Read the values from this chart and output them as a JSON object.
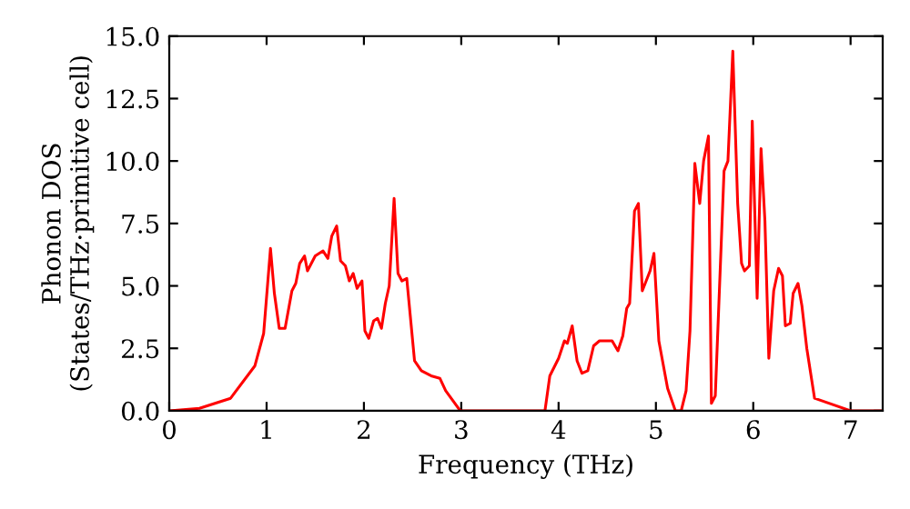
{
  "chart_data": {
    "type": "line",
    "xlabel": "Frequency (THz)",
    "ylabel": "Phonon DOS\n(States/THz·primitive cell)",
    "xlim": [
      0,
      7.33
    ],
    "ylim": [
      0,
      15
    ],
    "xticks": [
      0,
      1,
      2,
      3,
      4,
      5,
      6,
      7
    ],
    "yticks": [
      {
        "value": 0,
        "label": "0.0"
      },
      {
        "value": 2.5,
        "label": "2.5"
      },
      {
        "value": 5,
        "label": "5.0"
      },
      {
        "value": 7.5,
        "label": "7.5"
      },
      {
        "value": 10,
        "label": "10.0"
      },
      {
        "value": 12.5,
        "label": "12.5"
      },
      {
        "value": 15,
        "label": "15.0"
      }
    ],
    "grid": false,
    "legend": false,
    "marker": "none",
    "line_style": "solid",
    "series": [
      {
        "color": "#ff0000",
        "x": [
          0,
          0.31,
          0.63,
          0.88,
          0.97,
          1.04,
          1.08,
          1.13,
          1.19,
          1.26,
          1.3,
          1.34,
          1.39,
          1.42,
          1.5,
          1.58,
          1.63,
          1.67,
          1.72,
          1.76,
          1.81,
          1.85,
          1.89,
          1.93,
          1.98,
          2.01,
          2.05,
          2.1,
          2.14,
          2.18,
          2.22,
          2.26,
          2.31,
          2.35,
          2.39,
          2.44,
          2.52,
          2.59,
          2.69,
          2.78,
          2.84,
          2.99,
          3.86,
          3.91,
          4.0,
          4.06,
          4.09,
          4.14,
          4.19,
          4.24,
          4.3,
          4.36,
          4.42,
          4.55,
          4.61,
          4.66,
          4.7,
          4.73,
          4.78,
          4.82,
          4.86,
          4.94,
          4.98,
          5.03,
          5.12,
          5.2,
          5.26,
          5.31,
          5.35,
          5.4,
          5.45,
          5.49,
          5.54,
          5.57,
          5.61,
          5.7,
          5.74,
          5.79,
          5.84,
          5.88,
          5.91,
          5.96,
          5.99,
          6.04,
          6.08,
          6.12,
          6.16,
          6.21,
          6.26,
          6.3,
          6.33,
          6.38,
          6.41,
          6.46,
          6.5,
          6.55,
          6.63,
          7.0,
          7.33
        ],
        "values": [
          0,
          0.1,
          0.5,
          1.8,
          3.1,
          6.5,
          4.7,
          3.3,
          3.3,
          4.8,
          5.1,
          5.9,
          6.2,
          5.6,
          6.2,
          6.4,
          6.1,
          7.0,
          7.4,
          6.0,
          5.8,
          5.2,
          5.5,
          4.9,
          5.2,
          3.2,
          2.9,
          3.6,
          3.7,
          3.3,
          4.3,
          5.0,
          8.5,
          5.5,
          5.2,
          5.3,
          2.0,
          1.6,
          1.4,
          1.3,
          0.8,
          0,
          0,
          1.4,
          2.1,
          2.8,
          2.7,
          3.4,
          2.0,
          1.5,
          1.6,
          2.6,
          2.8,
          2.8,
          2.4,
          3.0,
          4.1,
          4.3,
          8.0,
          8.3,
          4.8,
          5.6,
          6.3,
          2.8,
          0.9,
          0,
          0,
          0.8,
          3.2,
          9.9,
          8.3,
          10.0,
          11.0,
          0.3,
          0.6,
          9.6,
          10.0,
          14.4,
          8.3,
          5.9,
          5.6,
          5.8,
          11.6,
          4.5,
          10.5,
          7.6,
          2.1,
          4.8,
          5.7,
          5.4,
          3.4,
          3.5,
          4.7,
          5.1,
          4.2,
          2.5,
          0.5,
          0,
          0
        ]
      }
    ]
  }
}
